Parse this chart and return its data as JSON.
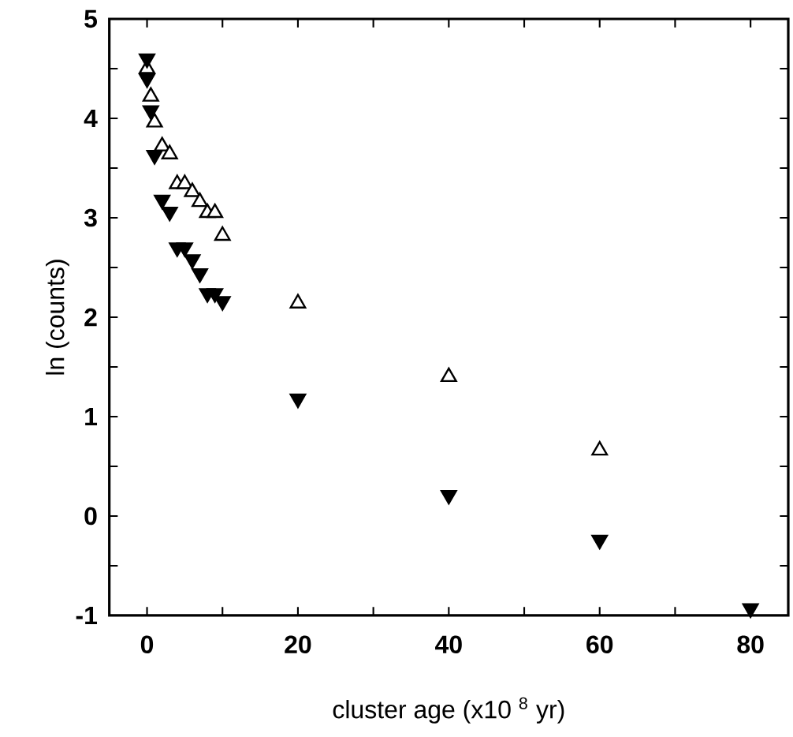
{
  "chart_data": {
    "type": "scatter",
    "xlabel": "cluster age (x10 $^{8}$ yr)",
    "ylabel": "ln (counts)",
    "xlim": [
      -5,
      85
    ],
    "ylim": [
      -1,
      5
    ],
    "xticks": [
      0,
      {
        "value": 10,
        "label": null
      },
      20,
      {
        "value": 30,
        "label": null
      },
      40,
      {
        "value": 50,
        "label": null
      },
      60,
      {
        "value": 70,
        "label": null
      },
      80
    ],
    "yticks": [
      -1,
      {
        "value": -0.5,
        "label": null
      },
      0,
      {
        "value": 0.5,
        "label": null
      },
      1,
      {
        "value": 1.5,
        "label": null
      },
      2,
      {
        "value": 2.5,
        "label": null
      },
      3,
      {
        "value": 3.5,
        "label": null
      },
      4,
      {
        "value": 4.5,
        "label": null
      },
      5
    ],
    "marker": "triangle",
    "grid": false,
    "series": [
      {
        "color": "#ffffff",
        "x": [
          0,
          0.5,
          1,
          2,
          3,
          4,
          5,
          6,
          7,
          8,
          9,
          10,
          20,
          40,
          60
        ],
        "values": [
          4.5,
          4.22,
          3.96,
          3.72,
          3.64,
          3.34,
          3.34,
          3.26,
          3.16,
          3.05,
          3.05,
          2.82,
          2.14,
          1.4,
          0.66
        ]
      },
      {
        "color": "#000000",
        "x": [
          0,
          0,
          0.5,
          1,
          2,
          3,
          4,
          5,
          6,
          7,
          8,
          9,
          10,
          20,
          40,
          60,
          80
        ],
        "values": [
          4.6,
          4.4,
          4.08,
          3.63,
          3.18,
          3.06,
          2.7,
          2.7,
          2.58,
          2.44,
          2.24,
          2.24,
          2.16,
          1.18,
          0.21,
          -0.24,
          -0.93
        ]
      }
    ]
  }
}
